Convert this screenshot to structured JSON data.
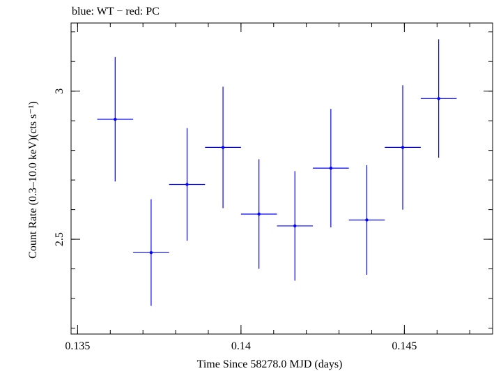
{
  "chart_data": {
    "type": "scatter",
    "title": "blue: WT − red: PC",
    "xlabel": "Time Since 58278.0 MJD (days)",
    "ylabel": "Count Rate (0.3–10.0 keV)(cts s⁻¹)",
    "xlim": [
      0.1348,
      0.1477
    ],
    "ylim": [
      2.18,
      3.23
    ],
    "x_ticks": [
      {
        "value": 0.135,
        "label": "0.135"
      },
      {
        "value": 0.14,
        "label": "0.14"
      },
      {
        "value": 0.145,
        "label": "0.145"
      }
    ],
    "y_ticks": [
      {
        "value": 2.5,
        "label": "2.5"
      },
      {
        "value": 3,
        "label": "3"
      }
    ],
    "x_minor_step": 0.001,
    "y_minor_step": 0.1,
    "grid": false,
    "series": [
      {
        "color": "#0000ff",
        "points": [
          {
            "x": 0.13615,
            "xerr": 0.00055,
            "y": 2.905,
            "yerr": 0.21
          },
          {
            "x": 0.13725,
            "xerr": 0.00055,
            "y": 2.455,
            "yerr": 0.18
          },
          {
            "x": 0.13835,
            "xerr": 0.00055,
            "y": 2.685,
            "yerr": 0.19
          },
          {
            "x": 0.13945,
            "xerr": 0.00055,
            "y": 2.81,
            "yerr": 0.205
          },
          {
            "x": 0.14055,
            "xerr": 0.00055,
            "y": 2.585,
            "yerr": 0.185
          },
          {
            "x": 0.14165,
            "xerr": 0.00055,
            "y": 2.545,
            "yerr": 0.185
          },
          {
            "x": 0.14275,
            "xerr": 0.00055,
            "y": 2.74,
            "yerr": 0.2
          },
          {
            "x": 0.14385,
            "xerr": 0.00055,
            "y": 2.565,
            "yerr": 0.185
          },
          {
            "x": 0.14495,
            "xerr": 0.00055,
            "y": 2.81,
            "yerr": 0.21
          },
          {
            "x": 0.14605,
            "xerr": 0.00055,
            "y": 2.975,
            "yerr": 0.2
          }
        ]
      }
    ]
  }
}
